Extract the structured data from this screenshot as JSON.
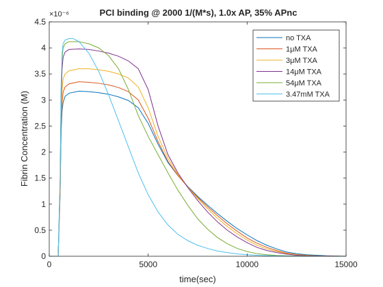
{
  "chart_data": {
    "type": "line",
    "title": "PCI binding @ 2000 1/(M*s), 1.0x AP, 35% APnc",
    "xlabel": "time(sec)",
    "ylabel": "Fibrin Concentration (M)",
    "xlim": [
      0,
      15000
    ],
    "ylim": [
      0,
      4.5
    ],
    "y_exponent_label": "×10⁻⁶",
    "xticks": [
      0,
      5000,
      10000,
      15000
    ],
    "xtick_labels": [
      "0",
      "5000",
      "10000",
      "15000"
    ],
    "yticks": [
      0,
      0.5,
      1,
      1.5,
      2,
      2.5,
      3,
      3.5,
      4,
      4.5
    ],
    "ytick_labels": [
      "0",
      "0.5",
      "1",
      "1.5",
      "2",
      "2.5",
      "3",
      "3.5",
      "4",
      "4.5"
    ],
    "grid": false,
    "legend_position": "top-right",
    "series": [
      {
        "name": "no TXA",
        "color": "#0072BD",
        "x": [
          0,
          450,
          550,
          600,
          650,
          700,
          800,
          1000,
          1500,
          2000,
          2500,
          3000,
          3500,
          4000,
          4500,
          5000,
          5500,
          6000,
          6500,
          7000,
          7500,
          8000,
          8500,
          9000,
          9500,
          10000,
          10500,
          11000,
          11500,
          12000,
          12500,
          13000,
          13500,
          14000,
          14500,
          15000
        ],
        "y": [
          0,
          0,
          1.2,
          2.4,
          2.8,
          2.95,
          3.07,
          3.13,
          3.17,
          3.16,
          3.14,
          3.11,
          3.06,
          2.99,
          2.85,
          2.55,
          2.15,
          1.8,
          1.55,
          1.34,
          1.15,
          0.98,
          0.82,
          0.67,
          0.53,
          0.41,
          0.3,
          0.21,
          0.14,
          0.08,
          0.05,
          0.03,
          0.02,
          0.01,
          0.005,
          0
        ]
      },
      {
        "name": "1μM TXA",
        "color": "#D95319",
        "x": [
          0,
          450,
          550,
          600,
          650,
          700,
          800,
          1000,
          1500,
          2000,
          2500,
          3000,
          3500,
          4000,
          4500,
          5000,
          5500,
          6000,
          6500,
          7000,
          7500,
          8000,
          8500,
          9000,
          9500,
          10000,
          10500,
          11000,
          11500,
          12000,
          12500,
          13000,
          13500,
          14000,
          14500,
          15000
        ],
        "y": [
          0,
          0,
          1.25,
          2.5,
          2.95,
          3.15,
          3.25,
          3.31,
          3.35,
          3.34,
          3.32,
          3.29,
          3.24,
          3.16,
          3.0,
          2.65,
          2.2,
          1.82,
          1.55,
          1.33,
          1.13,
          0.95,
          0.78,
          0.62,
          0.48,
          0.35,
          0.25,
          0.17,
          0.11,
          0.06,
          0.035,
          0.02,
          0.01,
          0.005,
          0.002,
          0
        ]
      },
      {
        "name": "3μM TXA",
        "color": "#EDB120",
        "x": [
          0,
          450,
          550,
          600,
          650,
          700,
          800,
          1000,
          1500,
          2000,
          2500,
          3000,
          3500,
          4000,
          4500,
          5000,
          5500,
          6000,
          6500,
          7000,
          7500,
          8000,
          8500,
          9000,
          9500,
          10000,
          10500,
          11000,
          11500,
          12000,
          12500,
          13000,
          13500,
          14000,
          14500,
          15000
        ],
        "y": [
          0,
          0,
          1.3,
          2.7,
          3.2,
          3.4,
          3.5,
          3.56,
          3.6,
          3.6,
          3.58,
          3.55,
          3.5,
          3.42,
          3.25,
          2.85,
          2.3,
          1.88,
          1.57,
          1.33,
          1.11,
          0.91,
          0.73,
          0.57,
          0.43,
          0.31,
          0.21,
          0.14,
          0.09,
          0.05,
          0.03,
          0.015,
          0.008,
          0.004,
          0.002,
          0
        ]
      },
      {
        "name": "14μM TXA",
        "color": "#7E2F8E",
        "x": [
          0,
          450,
          550,
          600,
          650,
          700,
          800,
          1000,
          1500,
          2000,
          2500,
          3000,
          3500,
          4000,
          4500,
          5000,
          5500,
          6000,
          6500,
          7000,
          7500,
          8000,
          8500,
          9000,
          9500,
          10000,
          10500,
          11000,
          11500,
          12000,
          12500,
          13000,
          13500,
          14000,
          14500,
          15000
        ],
        "y": [
          0,
          0,
          1.4,
          3.0,
          3.6,
          3.82,
          3.92,
          3.97,
          3.98,
          3.97,
          3.94,
          3.9,
          3.84,
          3.75,
          3.6,
          3.2,
          2.5,
          1.95,
          1.6,
          1.32,
          1.07,
          0.85,
          0.66,
          0.5,
          0.37,
          0.26,
          0.17,
          0.11,
          0.07,
          0.04,
          0.02,
          0.01,
          0.005,
          0.003,
          0.001,
          0
        ]
      },
      {
        "name": "54μM TXA",
        "color": "#77AC30",
        "x": [
          0,
          450,
          550,
          600,
          650,
          700,
          800,
          1000,
          1500,
          2000,
          2500,
          3000,
          3500,
          4000,
          4500,
          5000,
          5500,
          6000,
          6500,
          7000,
          7500,
          8000,
          8500,
          9000,
          9500,
          10000,
          10500,
          11000,
          11500,
          12000,
          12500,
          13000,
          13500,
          14000,
          14500,
          15000
        ],
        "y": [
          0,
          0,
          1.45,
          3.2,
          3.8,
          4.0,
          4.08,
          4.12,
          4.12,
          4.08,
          4.0,
          3.85,
          3.6,
          3.2,
          2.7,
          2.3,
          1.95,
          1.6,
          1.27,
          0.98,
          0.72,
          0.52,
          0.36,
          0.24,
          0.15,
          0.09,
          0.05,
          0.03,
          0.015,
          0.008,
          0.004,
          0.002,
          0.001,
          0,
          0,
          0
        ]
      },
      {
        "name": "3.47mM TXA",
        "color": "#4DBEEE",
        "x": [
          0,
          450,
          550,
          600,
          650,
          700,
          800,
          1000,
          1200,
          1500,
          2000,
          2500,
          3000,
          3500,
          4000,
          4500,
          5000,
          5500,
          6000,
          6500,
          7000,
          7500,
          8000,
          8500,
          9000,
          9500,
          10000,
          10500,
          11000,
          11500,
          12000,
          12500,
          13000,
          13500,
          14000,
          14500,
          15000
        ],
        "y": [
          0,
          0,
          1.5,
          3.3,
          3.9,
          4.08,
          4.15,
          4.18,
          4.18,
          4.12,
          3.9,
          3.55,
          3.1,
          2.6,
          2.1,
          1.6,
          1.18,
          0.85,
          0.6,
          0.42,
          0.3,
          0.21,
          0.15,
          0.1,
          0.07,
          0.045,
          0.03,
          0.02,
          0.012,
          0.007,
          0.004,
          0.002,
          0.001,
          0,
          0,
          0,
          0
        ]
      }
    ]
  }
}
